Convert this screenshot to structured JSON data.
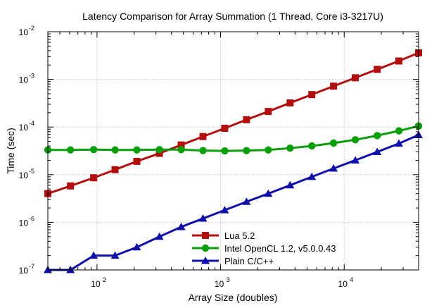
{
  "chart_data": {
    "type": "line",
    "title": "Latency Comparison for Array Summation (1 Thread, Core i3-3217U)",
    "xlabel": "Array Size (doubles)",
    "ylabel": "Time (sec)",
    "xscale": "log",
    "yscale": "log",
    "xlim": [
      40,
      40000
    ],
    "ylim": [
      1e-07,
      0.01
    ],
    "grid": true,
    "legend_position": "bottom-right",
    "x_ticks": [
      {
        "value": 100,
        "base": "10",
        "exp": "2"
      },
      {
        "value": 1000,
        "base": "10",
        "exp": "3"
      },
      {
        "value": 10000,
        "base": "10",
        "exp": "4"
      }
    ],
    "y_ticks": [
      {
        "value": 1e-07,
        "base": "10",
        "exp": "-7"
      },
      {
        "value": 1e-06,
        "base": "10",
        "exp": "-6"
      },
      {
        "value": 1e-05,
        "base": "10",
        "exp": "-5"
      },
      {
        "value": 0.0001,
        "base": "10",
        "exp": "-4"
      },
      {
        "value": 0.001,
        "base": "10",
        "exp": "-3"
      },
      {
        "value": 0.01,
        "base": "10",
        "exp": "-2"
      }
    ],
    "series": [
      {
        "name": "Lua 5.2",
        "color": "#b30e0e",
        "marker": "square",
        "x": [
          40,
          61,
          94,
          140,
          210,
          320,
          480,
          720,
          1080,
          1620,
          2430,
          3650,
          5470,
          8200,
          12300,
          18500,
          27700,
          40000
        ],
        "y": [
          4e-06,
          5.8e-06,
          8.6e-06,
          1.27e-05,
          1.9e-05,
          2.8e-05,
          4.2e-05,
          6.3e-05,
          9.4e-05,
          0.000142,
          0.000212,
          0.00032,
          0.00048,
          0.00072,
          0.00108,
          0.00162,
          0.00243,
          0.0036
        ]
      },
      {
        "name": "Intel OpenCL 1.2, v5.0.0.43",
        "color": "#0b9e0b",
        "marker": "circle",
        "x": [
          40,
          61,
          94,
          140,
          210,
          320,
          480,
          720,
          1080,
          1620,
          2430,
          3650,
          5470,
          8200,
          12300,
          18500,
          27700,
          40000
        ],
        "y": [
          3.3e-05,
          3.3e-05,
          3.35e-05,
          3.3e-05,
          3.3e-05,
          3.35e-05,
          3.35e-05,
          3.2e-05,
          3.15e-05,
          3.2e-05,
          3.3e-05,
          3.6e-05,
          4e-05,
          4.6e-05,
          5.4e-05,
          6.6e-05,
          8.3e-05,
          0.000105
        ]
      },
      {
        "name": "Plain C/C++",
        "color": "#1010a8",
        "marker": "triangle",
        "x": [
          40,
          61,
          94,
          140,
          210,
          320,
          480,
          720,
          1080,
          1620,
          2430,
          3650,
          5470,
          8200,
          12300,
          18500,
          27700,
          40000
        ],
        "y": [
          1e-07,
          1e-07,
          2e-07,
          2e-07,
          3e-07,
          5e-07,
          8e-07,
          1.2e-06,
          1.8e-06,
          2.7e-06,
          4e-06,
          6e-06,
          9e-06,
          1.35e-05,
          2e-05,
          3e-05,
          4.5e-05,
          6.8e-05
        ]
      }
    ]
  }
}
